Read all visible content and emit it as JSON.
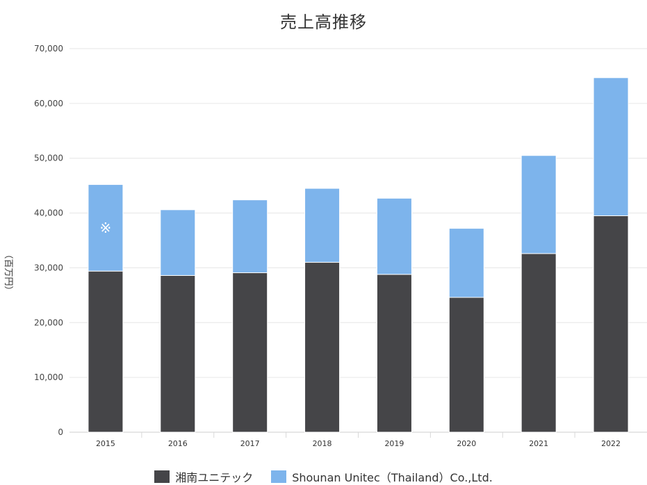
{
  "chart_data": {
    "type": "bar",
    "stacked": true,
    "title": "売上高推移",
    "ylabel": "（百万円）",
    "ylim": [
      0,
      70000
    ],
    "yticks": [
      "0",
      "10,000",
      "20,000",
      "30,000",
      "40,000",
      "50,000",
      "60,000",
      "70,000"
    ],
    "ytick_values": [
      0,
      10000,
      20000,
      30000,
      40000,
      50000,
      60000,
      70000
    ],
    "categories": [
      "2015",
      "2016",
      "2017",
      "2018",
      "2019",
      "2020",
      "2021",
      "2022"
    ],
    "series": [
      {
        "name": "湘南ユニテック",
        "color": "#454548",
        "values": [
          29400,
          28600,
          29100,
          31000,
          28800,
          24600,
          32600,
          39500
        ]
      },
      {
        "name": "Shounan Unitec（Thailand）Co.,Ltd.",
        "color": "#7db4ec",
        "values": [
          15800,
          12000,
          13300,
          13500,
          13900,
          12600,
          17900,
          25200
        ]
      }
    ],
    "annotations": [
      {
        "text": "※",
        "category": "2015",
        "series": 1
      }
    ],
    "grid": true,
    "legend_position": "bottom"
  }
}
